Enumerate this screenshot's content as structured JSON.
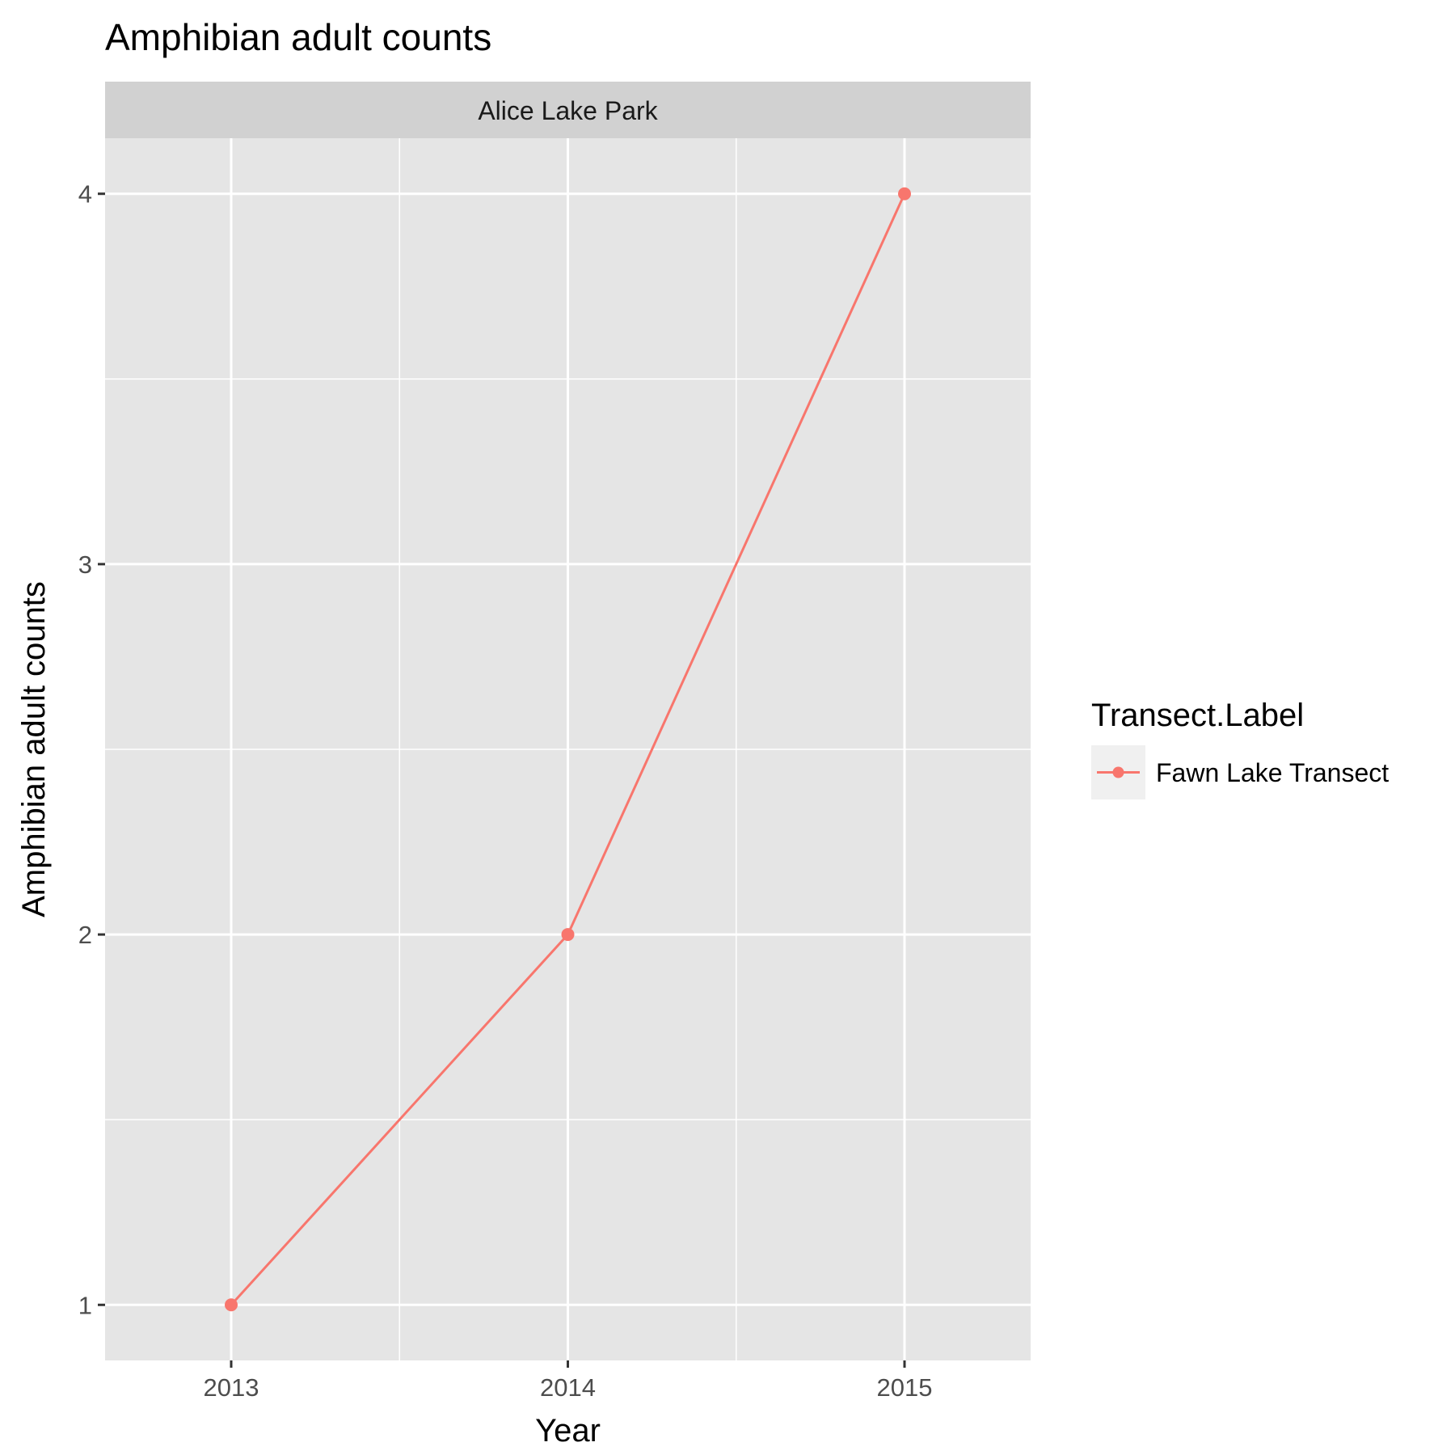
{
  "chart_data": {
    "type": "line",
    "title": "Amphibian adult counts",
    "facet": "Alice Lake Park",
    "xlabel": "Year",
    "ylabel": "Amphibian adult counts",
    "x": [
      "2013",
      "2014",
      "2015"
    ],
    "series": [
      {
        "name": "Fawn Lake Transect",
        "values": [
          1,
          2,
          4
        ],
        "color": "#F8766D"
      }
    ],
    "yticks": [
      1,
      2,
      3,
      4
    ],
    "ylim": [
      0.85,
      4.15
    ],
    "grid": true,
    "legend": {
      "title": "Transect.Label",
      "position": "right"
    },
    "colors": {
      "panel_bg": "#E5E5E5",
      "strip_bg": "#D1D1D1",
      "grid": "#FFFFFF",
      "legend_key_bg": "#F0F0F0"
    }
  }
}
